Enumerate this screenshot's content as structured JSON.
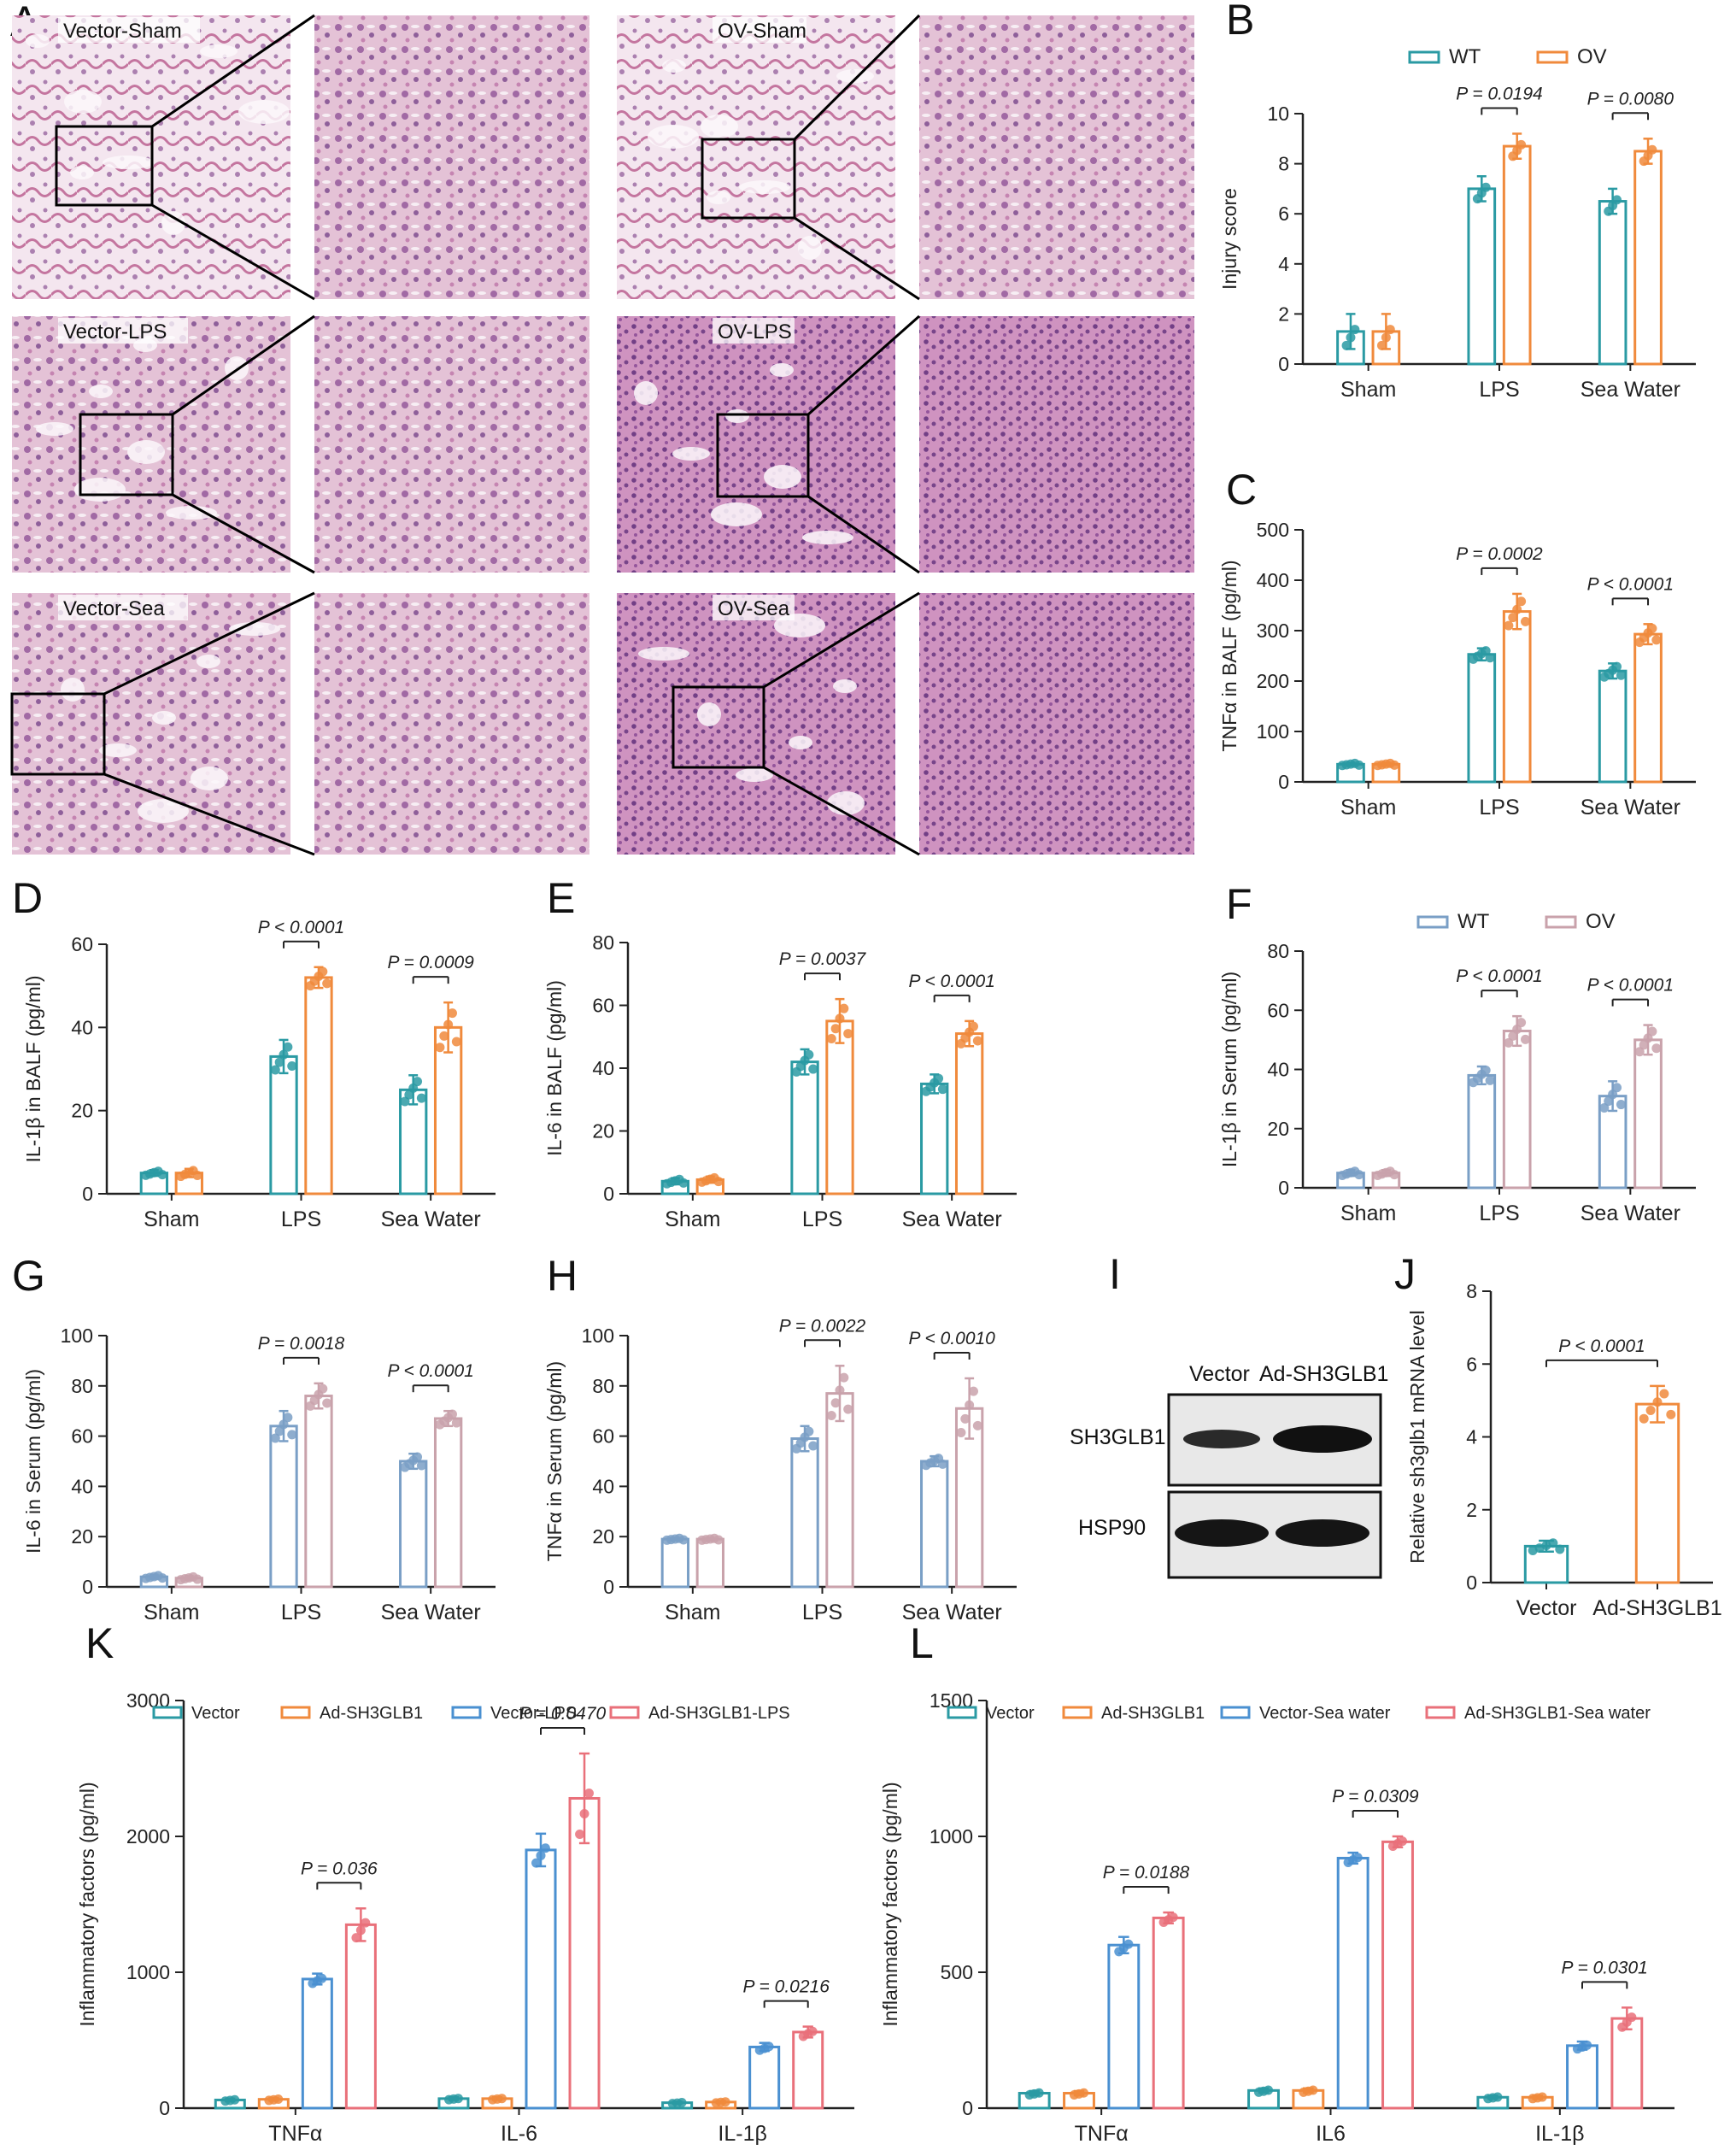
{
  "histology": {
    "panel_label": "A",
    "images": [
      {
        "label": "Vector-Sham"
      },
      {
        "label": "OV-Sham"
      },
      {
        "label": "Vector-LPS"
      },
      {
        "label": "OV-LPS"
      },
      {
        "label": "Vector-Sea"
      },
      {
        "label": "OV-Sea"
      }
    ]
  },
  "western_blot": {
    "panel_label": "I",
    "lanes": [
      "Vector",
      "Ad-SH3GLB1"
    ],
    "bands": [
      "SH3GLB1",
      "HSP90"
    ]
  },
  "colors": {
    "wt_teal": "#2a9aa3",
    "ov_orange": "#f08a3c",
    "serum_blue": "#7a9fc6",
    "serum_pink": "#c9a2ab",
    "k_blue": "#4a90d1",
    "k_pink": "#e9707a"
  },
  "chart_data": [
    {
      "panel": "B",
      "type": "bar",
      "categories": [
        "Sham",
        "LPS",
        "Sea Water"
      ],
      "ylabel": "Injury score",
      "ylim": [
        0,
        10
      ],
      "yticks": [
        0,
        2,
        4,
        6,
        8,
        10
      ],
      "legend": "top",
      "series": [
        {
          "name": "WT",
          "values": [
            1.3,
            7.0,
            6.5
          ],
          "errors": [
            0.7,
            0.5,
            0.5
          ]
        },
        {
          "name": "OV",
          "values": [
            1.3,
            8.7,
            8.5
          ],
          "errors": [
            0.7,
            0.5,
            0.5
          ]
        }
      ],
      "annotations": [
        {
          "text": "P = 0.0194",
          "category": 1
        },
        {
          "text": "P = 0.0080",
          "category": 2
        }
      ]
    },
    {
      "panel": "C",
      "type": "bar",
      "categories": [
        "Sham",
        "LPS",
        "Sea Water"
      ],
      "ylabel": "TNFα in BALF (pg/ml)",
      "ylim": [
        0,
        500
      ],
      "yticks": [
        0,
        100,
        200,
        300,
        400,
        500
      ],
      "series": [
        {
          "name": "WT",
          "values": [
            35,
            253,
            220
          ],
          "errors": [
            3,
            12,
            15
          ]
        },
        {
          "name": "OV",
          "values": [
            35,
            338,
            293
          ],
          "errors": [
            3,
            35,
            20
          ]
        }
      ],
      "annotations": [
        {
          "text": "P = 0.0002",
          "category": 1
        },
        {
          "text": "P < 0.0001",
          "category": 2
        }
      ]
    },
    {
      "panel": "D",
      "type": "bar",
      "categories": [
        "Sham",
        "LPS",
        "Sea Water"
      ],
      "ylabel": "IL-1β in BALF (pg/ml)",
      "ylim": [
        0,
        60
      ],
      "yticks": [
        0,
        20,
        40,
        60
      ],
      "series": [
        {
          "name": "WT",
          "values": [
            5,
            33,
            25
          ],
          "errors": [
            0.7,
            4,
            3.5
          ]
        },
        {
          "name": "OV",
          "values": [
            5,
            52,
            40
          ],
          "errors": [
            1,
            2.5,
            6
          ]
        }
      ],
      "annotations": [
        {
          "text": "P < 0.0001",
          "category": 1
        },
        {
          "text": "P = 0.0009",
          "category": 2
        }
      ]
    },
    {
      "panel": "E",
      "type": "bar",
      "categories": [
        "Sham",
        "LPS",
        "Sea Water"
      ],
      "ylabel": "IL-6 in BALF (pg/ml)",
      "ylim": [
        0,
        80
      ],
      "yticks": [
        0,
        20,
        40,
        60,
        80
      ],
      "series": [
        {
          "name": "WT",
          "values": [
            4,
            42,
            35
          ],
          "errors": [
            1,
            4,
            3
          ]
        },
        {
          "name": "OV",
          "values": [
            4.5,
            55,
            51
          ],
          "errors": [
            1,
            7,
            4
          ]
        }
      ],
      "annotations": [
        {
          "text": "P = 0.0037",
          "category": 1
        },
        {
          "text": "P < 0.0001",
          "category": 2
        }
      ]
    },
    {
      "panel": "F",
      "type": "bar",
      "categories": [
        "Sham",
        "LPS",
        "Sea Water"
      ],
      "ylabel": "IL-1β in Serum (pg/ml)",
      "ylim": [
        0,
        80
      ],
      "yticks": [
        0,
        20,
        40,
        60,
        80
      ],
      "legend": "top",
      "series": [
        {
          "name": "WT",
          "values": [
            5,
            38,
            31
          ],
          "errors": [
            1,
            3,
            5
          ]
        },
        {
          "name": "OV",
          "values": [
            5,
            53,
            50
          ],
          "errors": [
            1,
            5,
            5
          ]
        }
      ],
      "annotations": [
        {
          "text": "P < 0.0001",
          "category": 1
        },
        {
          "text": "P < 0.0001",
          "category": 2
        }
      ]
    },
    {
      "panel": "G",
      "type": "bar",
      "categories": [
        "Sham",
        "LPS",
        "Sea Water"
      ],
      "ylabel": "IL-6 in Serum (pg/ml)",
      "ylim": [
        0,
        100
      ],
      "yticks": [
        0,
        20,
        40,
        60,
        80,
        100
      ],
      "series": [
        {
          "name": "WT",
          "values": [
            4,
            64,
            50
          ],
          "errors": [
            0.8,
            6,
            3
          ]
        },
        {
          "name": "OV",
          "values": [
            3.5,
            76,
            67
          ],
          "errors": [
            0.8,
            5,
            3
          ]
        }
      ],
      "annotations": [
        {
          "text": "P = 0.0018",
          "category": 1
        },
        {
          "text": "P < 0.0001",
          "category": 2
        }
      ]
    },
    {
      "panel": "H",
      "type": "bar",
      "categories": [
        "Sham",
        "LPS",
        "Sea Water"
      ],
      "ylabel": "TNFα in Serum (pg/ml)",
      "ylim": [
        0,
        100
      ],
      "yticks": [
        0,
        20,
        40,
        60,
        80,
        100
      ],
      "series": [
        {
          "name": "WT",
          "values": [
            19,
            59,
            50
          ],
          "errors": [
            0.5,
            5,
            2
          ]
        },
        {
          "name": "OV",
          "values": [
            19,
            77,
            71
          ],
          "errors": [
            0.5,
            11,
            12
          ]
        }
      ],
      "annotations": [
        {
          "text": "P = 0.0022",
          "category": 1
        },
        {
          "text": "P < 0.0010",
          "category": 2
        }
      ]
    },
    {
      "panel": "J",
      "type": "bar",
      "categories": [
        "Vector",
        "Ad-SH3GLB1"
      ],
      "ylabel": "Relative sh3glb1 mRNA level",
      "ylim": [
        0,
        8
      ],
      "yticks": [
        0,
        2,
        4,
        6,
        8
      ],
      "series": [
        {
          "name": "",
          "values": [
            1.0,
            4.9
          ],
          "errors": [
            0.15,
            0.5
          ]
        }
      ],
      "annotations": [
        {
          "text": "P < 0.0001",
          "category": 0
        }
      ]
    },
    {
      "panel": "K",
      "type": "bar",
      "categories": [
        "TNFα",
        "IL-6",
        "IL-1β"
      ],
      "ylabel": "Inflammatory factors (pg/ml)",
      "ylim": [
        0,
        3000
      ],
      "yticks": [
        0,
        1000,
        2000,
        3000
      ],
      "legend": "top",
      "series": [
        {
          "name": "Vector",
          "values": [
            60,
            70,
            40
          ],
          "errors": [
            10,
            10,
            8
          ]
        },
        {
          "name": "Ad-SH3GLB1",
          "values": [
            65,
            70,
            45
          ],
          "errors": [
            10,
            10,
            8
          ]
        },
        {
          "name": "Vector-LPS",
          "values": [
            950,
            1900,
            450
          ],
          "errors": [
            40,
            120,
            30
          ]
        },
        {
          "name": "Ad-SH3GLB1-LPS",
          "values": [
            1350,
            2280,
            560
          ],
          "errors": [
            120,
            330,
            40
          ]
        }
      ],
      "annotations": [
        {
          "text": "P = 0.036",
          "category": 0
        },
        {
          "text": "P = 0.0470",
          "category": 1
        },
        {
          "text": "P = 0.0216",
          "category": 2
        }
      ]
    },
    {
      "panel": "L",
      "type": "bar",
      "categories": [
        "TNFα",
        "IL6",
        "IL-1β"
      ],
      "ylabel": "Inflammatory factors (pg/ml)",
      "ylim": [
        0,
        1500
      ],
      "yticks": [
        0,
        500,
        1000,
        1500
      ],
      "legend": "top",
      "series": [
        {
          "name": "Vector",
          "values": [
            55,
            65,
            40
          ],
          "errors": [
            8,
            8,
            6
          ]
        },
        {
          "name": "Ad-SH3GLB1",
          "values": [
            55,
            65,
            40
          ],
          "errors": [
            8,
            8,
            6
          ]
        },
        {
          "name": "Vector-Sea water",
          "values": [
            600,
            920,
            230
          ],
          "errors": [
            30,
            20,
            15
          ]
        },
        {
          "name": "Ad-SH3GLB1-Sea water",
          "values": [
            700,
            980,
            330
          ],
          "errors": [
            20,
            20,
            40
          ]
        }
      ],
      "annotations": [
        {
          "text": "P = 0.0188",
          "category": 0
        },
        {
          "text": "P = 0.0309",
          "category": 1
        },
        {
          "text": "P = 0.0301",
          "category": 2
        }
      ]
    }
  ]
}
